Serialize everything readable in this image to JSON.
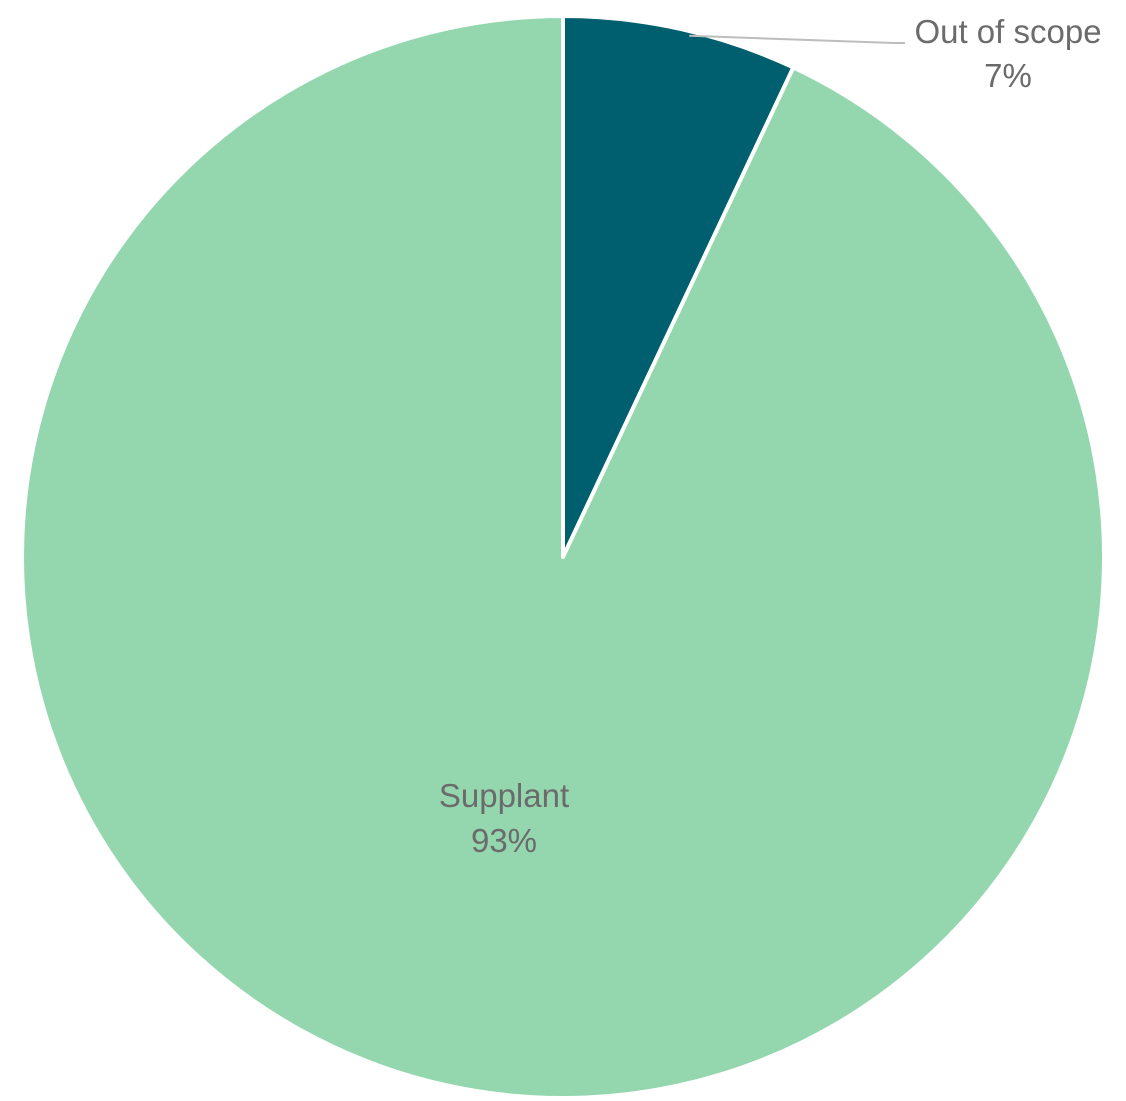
{
  "chart_data": {
    "type": "pie",
    "title": "",
    "start_angle_deg": 0,
    "direction": "clockwise",
    "legend": "none",
    "slices": [
      {
        "label": "Out of scope",
        "value": 7,
        "value_label": "7%",
        "color": "#005f6e",
        "label_placement": "outside-with-leader"
      },
      {
        "label": "Supplant",
        "value": 93,
        "value_label": "93%",
        "color": "#94d7af",
        "label_placement": "inside"
      }
    ],
    "slice_border_color": "#ffffff",
    "leader_line_color": "#bdbdbd"
  }
}
